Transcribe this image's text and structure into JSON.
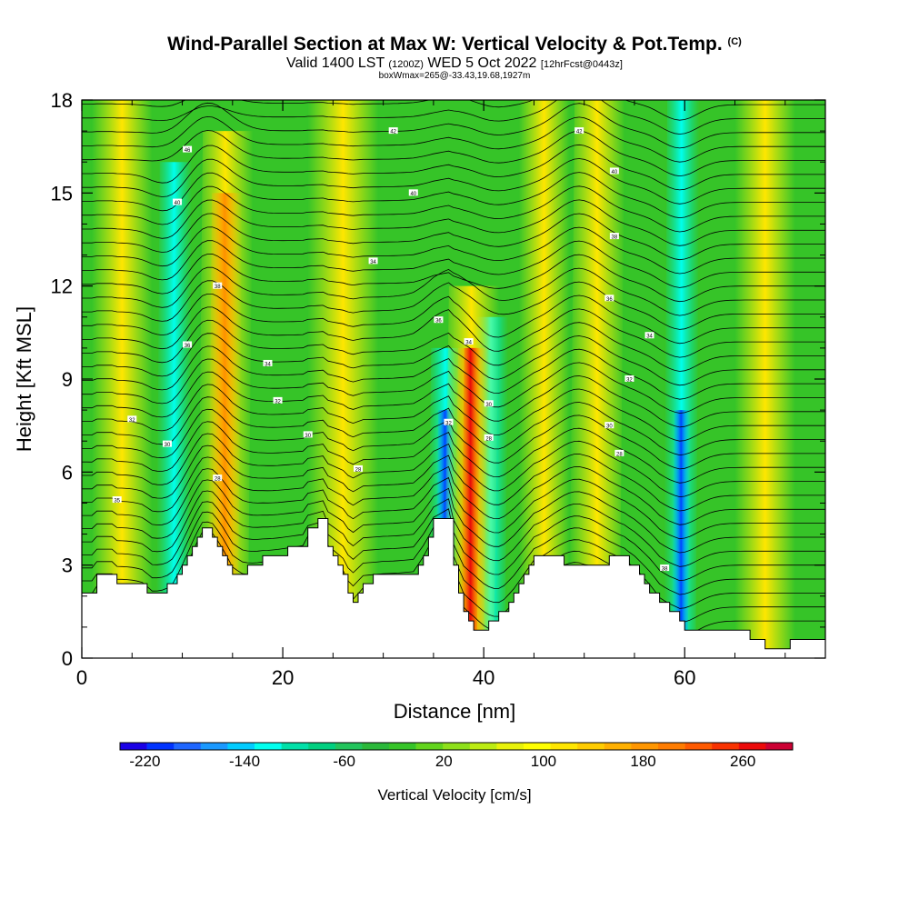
{
  "title": {
    "main": "Wind-Parallel Section at Max W: Vertical Velocity & Pot.Temp.",
    "copyright": "(C)",
    "valid_prefix": "Valid 1400 LST",
    "valid_z": "(1200Z)",
    "valid_date": "WED 5 Oct 2022",
    "fcst": "[12hrFcst@0443z]",
    "boxinfo": "boxWmax=265@-33.43,19.68,1927m"
  },
  "chart_data": {
    "type": "heatmap",
    "xlabel": "Distance [nm]",
    "ylabel": "Height [Kft MSL]",
    "xlim": [
      0,
      74
    ],
    "ylim": [
      0,
      18
    ],
    "x_ticks": [
      0,
      20,
      40,
      60
    ],
    "y_ticks": [
      0,
      3,
      6,
      9,
      12,
      15,
      18
    ],
    "colorbar": {
      "label": "Vertical Velocity [cm/s]",
      "tick_labels": [
        "-220",
        "-140",
        "-60",
        "20",
        "100",
        "180",
        "260"
      ],
      "tick_values": [
        -220,
        -140,
        -60,
        20,
        100,
        180,
        260
      ],
      "min": -240,
      "max": 300,
      "colors": [
        "#1a00e6",
        "#0033ff",
        "#1f66ff",
        "#1a99ff",
        "#00ccff",
        "#00ffee",
        "#00e0a8",
        "#00d080",
        "#22c45c",
        "#2bb83a",
        "#36c428",
        "#62d41c",
        "#8ee01a",
        "#bcec12",
        "#e8f20a",
        "#ffff00",
        "#ffe600",
        "#ffcc00",
        "#ffb000",
        "#ff9600",
        "#ff7c00",
        "#ff5a00",
        "#f83200",
        "#ec0a0a",
        "#cc0033"
      ]
    },
    "updraft_bands": [
      {
        "x": 14,
        "z_max": 17,
        "peak_cm_s": 180
      },
      {
        "x": 38.5,
        "z_max": 12,
        "peak_cm_s": 265
      },
      {
        "x": 51,
        "z_max": 18,
        "peak_cm_s": 110
      }
    ],
    "downdraft_bands": [
      {
        "x": 9,
        "z_max": 16,
        "peak_cm_s": -90
      },
      {
        "x": 36,
        "z_max": 10,
        "peak_cm_s": -200
      },
      {
        "x": 40.5,
        "z_max": 11,
        "peak_cm_s": -120
      },
      {
        "x": 59.5,
        "z_max": 18,
        "peak_cm_s": -150
      }
    ],
    "terrain": {
      "x": [
        0,
        1,
        1.5,
        3,
        3.5,
        6,
        7,
        9,
        10,
        11,
        12,
        13,
        14,
        15,
        16,
        18,
        22,
        22.5,
        24,
        24.5,
        26,
        26.5,
        27,
        28,
        30,
        33,
        34,
        35,
        36.5,
        37,
        37.5,
        38,
        39,
        40,
        41,
        43,
        45,
        47,
        50,
        53,
        54,
        55,
        56.5,
        57.5,
        59,
        60,
        61,
        64,
        66,
        67,
        68,
        70,
        73,
        74
      ],
      "z": [
        2.2,
        2.2,
        2.6,
        2.6,
        2.3,
        2.3,
        2.0,
        2.4,
        3.0,
        3.6,
        4.2,
        4.0,
        3.4,
        2.8,
        2.8,
        3.2,
        3.6,
        4.2,
        4.5,
        3.6,
        2.8,
        2.2,
        1.9,
        2.5,
        2.6,
        2.6,
        3.4,
        4.4,
        4.6,
        2.9,
        2.2,
        1.6,
        0.8,
        0.9,
        1.2,
        2.0,
        3.2,
        3.2,
        2.9,
        3.2,
        3.2,
        2.9,
        2.2,
        1.7,
        1.6,
        1.0,
        0.8,
        1.0,
        0.8,
        0.6,
        0.4,
        0.4,
        0.7,
        0.7
      ]
    },
    "theta_contour_labels": [
      {
        "x": 3.5,
        "z": 5.1,
        "text": "35"
      },
      {
        "x": 5,
        "z": 7.7,
        "text": "32"
      },
      {
        "x": 8.5,
        "z": 6.9,
        "text": "30"
      },
      {
        "x": 10.5,
        "z": 16.4,
        "text": "46"
      },
      {
        "x": 9.5,
        "z": 14.7,
        "text": "40"
      },
      {
        "x": 10.5,
        "z": 10.1,
        "text": "36"
      },
      {
        "x": 13.5,
        "z": 12.0,
        "text": "38"
      },
      {
        "x": 13.5,
        "z": 5.8,
        "text": "28"
      },
      {
        "x": 18.5,
        "z": 9.5,
        "text": "34"
      },
      {
        "x": 19.5,
        "z": 8.3,
        "text": "32"
      },
      {
        "x": 22.5,
        "z": 7.2,
        "text": "30"
      },
      {
        "x": 27.5,
        "z": 6.1,
        "text": "28"
      },
      {
        "x": 29,
        "z": 12.8,
        "text": "34"
      },
      {
        "x": 31,
        "z": 17.0,
        "text": "42"
      },
      {
        "x": 33,
        "z": 15.0,
        "text": "40"
      },
      {
        "x": 35.5,
        "z": 10.9,
        "text": "36"
      },
      {
        "x": 36.5,
        "z": 7.6,
        "text": "32"
      },
      {
        "x": 38.5,
        "z": 10.2,
        "text": "34"
      },
      {
        "x": 40.5,
        "z": 8.2,
        "text": "30"
      },
      {
        "x": 40.5,
        "z": 7.1,
        "text": "28"
      },
      {
        "x": 49.5,
        "z": 17.0,
        "text": "42"
      },
      {
        "x": 53,
        "z": 15.7,
        "text": "40"
      },
      {
        "x": 53,
        "z": 13.6,
        "text": "38"
      },
      {
        "x": 52.5,
        "z": 11.6,
        "text": "36"
      },
      {
        "x": 56.5,
        "z": 10.4,
        "text": "34"
      },
      {
        "x": 54.5,
        "z": 9.0,
        "text": "32"
      },
      {
        "x": 52.5,
        "z": 7.5,
        "text": "30"
      },
      {
        "x": 53.5,
        "z": 6.6,
        "text": "28"
      },
      {
        "x": 58,
        "z": 2.9,
        "text": "38"
      }
    ]
  }
}
